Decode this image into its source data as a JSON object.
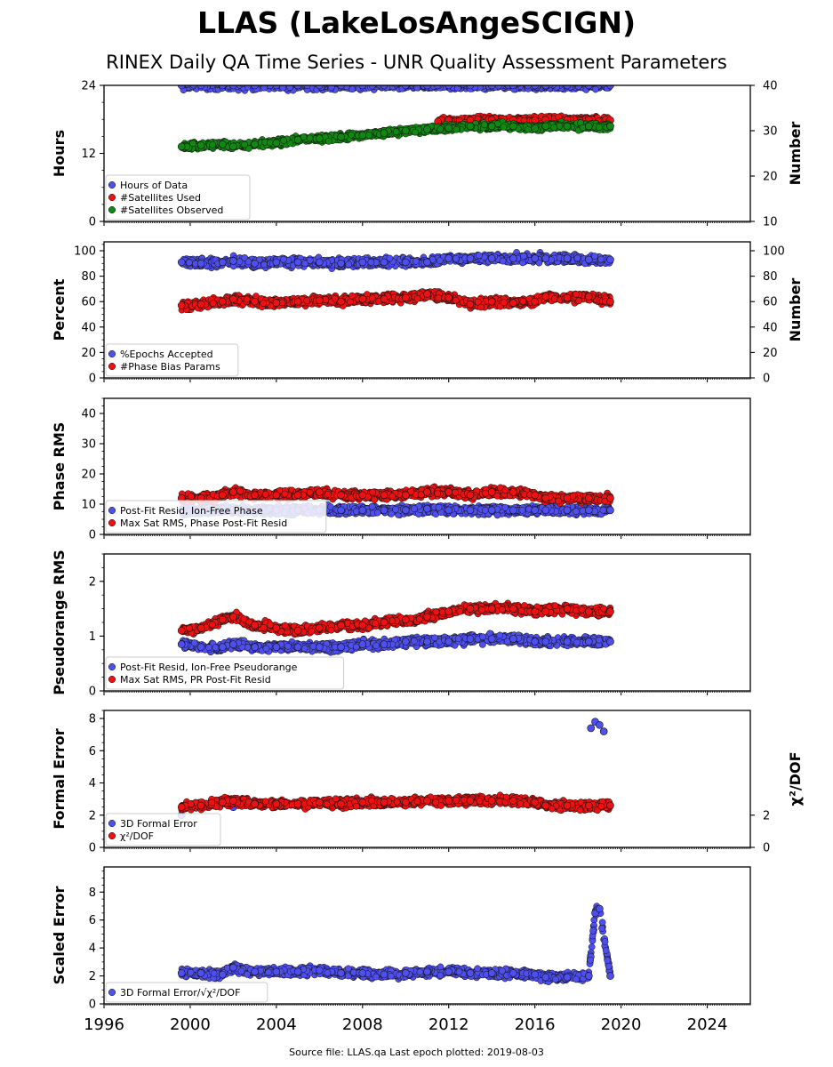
{
  "title": "LLAS (LakeLosAngeSCIGN)",
  "subtitle": "RINEX Daily QA Time Series - UNR Quality Assessment Parameters",
  "source_text": "Source file: LLAS.qa Last epoch plotted: 2019-08-03",
  "colors": {
    "blue": "#4f4ff0",
    "red": "#ee1111",
    "green": "#118811"
  },
  "chart_data": [
    {
      "type": "scatter",
      "ylabel": "Hours",
      "y2label": "Number",
      "xlim": [
        1996,
        2026
      ],
      "ylim": [
        0,
        24
      ],
      "y2lim": [
        10,
        40
      ],
      "yticks": [
        0,
        12,
        24
      ],
      "y2ticks": [
        10,
        20,
        30,
        40
      ],
      "legend_position": "lower-left",
      "series": [
        {
          "name": "Hours of Data",
          "color": "blue",
          "axis": "left",
          "x": [
            1999.6,
            2000.5,
            2001.5,
            2002.0,
            2003.0,
            2004.0,
            2005.0,
            2006.0,
            2007.0,
            2008.0,
            2009.0,
            2010.0,
            2011.0,
            2012.0,
            2013.0,
            2014.0,
            2015.0,
            2016.0,
            2016.5,
            2017.5,
            2018.5,
            2019.5
          ],
          "y": [
            24,
            24,
            24,
            24,
            24,
            24,
            24,
            24,
            24,
            24,
            24,
            24,
            24,
            24,
            24,
            24,
            24,
            24,
            24,
            24,
            24,
            24
          ]
        },
        {
          "name": "#Satellites Used",
          "color": "red",
          "axis": "right",
          "x": [
            2011.5,
            2012.0,
            2013.0,
            2014.0,
            2015.0,
            2016.0,
            2016.5,
            2017.5,
            2018.5,
            2019.5
          ],
          "y": [
            32,
            32.3,
            32.3,
            32.4,
            32.4,
            32.3,
            32.4,
            32.4,
            32.4,
            32.3
          ]
        },
        {
          "name": "#Satellites Observed",
          "color": "green",
          "axis": "right",
          "x": [
            1999.6,
            2000.5,
            2001.5,
            2002.0,
            2003.0,
            2004.0,
            2005.0,
            2006.0,
            2007.0,
            2008.0,
            2009.0,
            2010.0,
            2011.0,
            2012.0,
            2013.0,
            2014.0,
            2015.0,
            2016.0,
            2016.5,
            2017.5,
            2018.5,
            2019.5
          ],
          "y": [
            26.5,
            26.8,
            27.0,
            26.5,
            27.0,
            27.3,
            28.0,
            28.3,
            28.6,
            29.0,
            29.5,
            30.0,
            30.3,
            30.6,
            31.0,
            31.0,
            31.0,
            30.5,
            31.0,
            31.0,
            31.0,
            31.0
          ]
        }
      ]
    },
    {
      "type": "scatter",
      "ylabel": "Percent",
      "y2label": "Number",
      "xlim": [
        1996,
        2026
      ],
      "ylim": [
        0,
        107
      ],
      "yticks": [
        0,
        20,
        40,
        60,
        80,
        100
      ],
      "y2ticks": [
        0,
        20,
        40,
        60,
        80,
        100
      ],
      "legend_position": "lower-left",
      "series": [
        {
          "name": "%Epochs Accepted",
          "color": "blue",
          "x": [
            1999.6,
            2000.5,
            2001.5,
            2002.0,
            2003.0,
            2004.0,
            2005.0,
            2006.0,
            2007.0,
            2008.0,
            2009.0,
            2010.0,
            2011.0,
            2012.0,
            2013.0,
            2014.0,
            2015.0,
            2016.0,
            2016.5,
            2017.5,
            2018.5,
            2019.5
          ],
          "y": [
            91,
            90,
            91,
            92,
            90,
            91,
            91,
            91,
            90,
            91,
            91,
            91,
            91,
            94,
            94,
            94,
            94,
            94,
            94,
            94,
            93,
            93
          ]
        },
        {
          "name": "#Phase Bias Params",
          "color": "red",
          "x": [
            1999.6,
            2000.5,
            2001.5,
            2002.0,
            2003.0,
            2004.0,
            2005.0,
            2006.0,
            2007.0,
            2008.0,
            2009.0,
            2010.0,
            2011.0,
            2012.0,
            2013.0,
            2014.0,
            2015.0,
            2016.0,
            2016.5,
            2017.5,
            2018.5,
            2019.5
          ],
          "y": [
            57,
            58,
            60,
            62,
            60,
            59,
            60,
            61,
            60,
            62,
            62,
            63,
            66,
            63,
            58,
            60,
            59,
            60,
            64,
            63,
            64,
            60
          ]
        }
      ]
    },
    {
      "type": "scatter",
      "ylabel": "Phase RMS",
      "xlim": [
        1996,
        2026
      ],
      "ylim": [
        0,
        45
      ],
      "yticks": [
        0,
        10,
        20,
        30,
        40
      ],
      "legend_position": "lower-left",
      "series": [
        {
          "name": "Post-Fit Resid, Ion-Free Phase",
          "color": "blue",
          "x": [
            1999.6,
            2000.5,
            2001.5,
            2002.0,
            2003.0,
            2004.0,
            2005.0,
            2006.0,
            2007.0,
            2008.0,
            2009.0,
            2010.0,
            2011.0,
            2012.0,
            2013.0,
            2014.0,
            2015.0,
            2016.0,
            2016.5,
            2017.5,
            2018.5,
            2019.5
          ],
          "y": [
            8,
            8,
            8.5,
            8,
            8,
            8,
            8,
            8,
            8,
            8,
            8,
            8,
            8.5,
            8,
            8,
            8,
            8,
            8,
            8,
            8,
            8,
            8
          ]
        },
        {
          "name": "Max Sat RMS, Phase Post-Fit Resid",
          "color": "red",
          "x": [
            1999.6,
            2000.5,
            2001.5,
            2002.0,
            2003.0,
            2004.0,
            2005.0,
            2006.0,
            2007.0,
            2008.0,
            2009.0,
            2010.0,
            2011.0,
            2012.0,
            2013.0,
            2014.0,
            2015.0,
            2016.0,
            2016.5,
            2017.5,
            2018.5,
            2019.5
          ],
          "y": [
            12,
            12,
            13,
            14,
            13,
            13,
            13,
            14,
            13,
            13,
            13,
            13,
            14,
            14,
            13,
            14,
            14,
            13,
            12,
            12,
            12,
            12
          ]
        }
      ]
    },
    {
      "type": "scatter",
      "ylabel": "Pseudorange RMS",
      "xlim": [
        1996,
        2026
      ],
      "ylim": [
        0,
        2.5
      ],
      "yticks": [
        0,
        1,
        2
      ],
      "legend_position": "lower-left",
      "series": [
        {
          "name": "Post-Fit Resid, Ion-Free Pseudorange",
          "color": "blue",
          "x": [
            1999.6,
            2000.5,
            2001.5,
            2002.0,
            2003.0,
            2004.0,
            2005.0,
            2006.0,
            2007.0,
            2008.0,
            2009.0,
            2010.0,
            2011.0,
            2012.0,
            2013.0,
            2014.0,
            2015.0,
            2016.0,
            2016.5,
            2017.5,
            2018.5,
            2019.5
          ],
          "y": [
            0.85,
            0.8,
            0.8,
            0.85,
            0.8,
            0.8,
            0.8,
            0.8,
            0.8,
            0.85,
            0.85,
            0.9,
            0.9,
            0.9,
            0.95,
            0.95,
            0.95,
            0.9,
            0.9,
            0.9,
            0.9,
            0.9
          ]
        },
        {
          "name": "Max Sat RMS, PR Post-Fit Resid",
          "color": "red",
          "x": [
            1999.6,
            2000.5,
            2001.5,
            2002.0,
            2003.0,
            2004.0,
            2005.0,
            2006.0,
            2007.0,
            2008.0,
            2009.0,
            2010.0,
            2011.0,
            2012.0,
            2013.0,
            2014.0,
            2015.0,
            2016.0,
            2016.5,
            2017.5,
            2018.5,
            2019.5
          ],
          "y": [
            1.1,
            1.15,
            1.3,
            1.35,
            1.2,
            1.15,
            1.1,
            1.15,
            1.2,
            1.2,
            1.25,
            1.3,
            1.35,
            1.45,
            1.5,
            1.5,
            1.5,
            1.45,
            1.45,
            1.5,
            1.45,
            1.45
          ]
        }
      ]
    },
    {
      "type": "scatter",
      "ylabel": "Formal Error",
      "y2label": "χ²/DOF",
      "xlim": [
        1996,
        2026
      ],
      "ylim": [
        0,
        8.5
      ],
      "yticks": [
        0,
        2,
        4,
        6,
        8
      ],
      "y2ticks": [
        0,
        2
      ],
      "legend_position": "lower-left",
      "series": [
        {
          "name": "3D Formal Error",
          "color": "blue",
          "x": [
            1999.6,
            2002.0,
            2018.6,
            2018.8,
            2019.0,
            2019.2
          ],
          "y": [
            2.0,
            2.5,
            7.4,
            7.8,
            7.6,
            7.2
          ]
        },
        {
          "name": "χ²/DOF",
          "color": "red",
          "x": [
            1999.6,
            2000.5,
            2001.5,
            2002.0,
            2003.0,
            2004.0,
            2005.0,
            2006.0,
            2007.0,
            2008.0,
            2009.0,
            2010.0,
            2011.0,
            2012.0,
            2013.0,
            2014.0,
            2015.0,
            2016.0,
            2016.5,
            2017.5,
            2018.5,
            2019.5
          ],
          "y": [
            2.5,
            2.6,
            2.8,
            2.9,
            2.7,
            2.7,
            2.7,
            2.8,
            2.7,
            2.8,
            2.8,
            2.8,
            2.9,
            2.9,
            2.9,
            2.9,
            2.9,
            2.8,
            2.6,
            2.6,
            2.6,
            2.6
          ]
        }
      ]
    },
    {
      "type": "scatter",
      "ylabel": "Scaled Error",
      "xlim": [
        1996,
        2026
      ],
      "ylim": [
        0,
        9.8
      ],
      "yticks": [
        0,
        2,
        4,
        6,
        8
      ],
      "xticks": [
        1996,
        2000,
        2004,
        2008,
        2012,
        2016,
        2020,
        2024
      ],
      "legend_position": "lower-left",
      "series": [
        {
          "name": "3D Formal Error/√χ²/DOF",
          "color": "blue",
          "x": [
            1999.6,
            2000.5,
            2001.5,
            2002.0,
            2003.0,
            2004.0,
            2005.0,
            2006.0,
            2007.0,
            2008.0,
            2009.0,
            2010.0,
            2011.0,
            2012.0,
            2013.0,
            2014.0,
            2015.0,
            2016.0,
            2016.5,
            2017.5,
            2018.5,
            2018.8,
            2019.0,
            2019.5
          ],
          "y": [
            2.2,
            2.2,
            2.1,
            2.6,
            2.3,
            2.3,
            2.3,
            2.4,
            2.2,
            2.2,
            2.1,
            2.2,
            2.3,
            2.3,
            2.2,
            2.2,
            2.2,
            2.1,
            1.9,
            1.9,
            2.0,
            6.5,
            6.8,
            2.0
          ]
        }
      ]
    }
  ]
}
